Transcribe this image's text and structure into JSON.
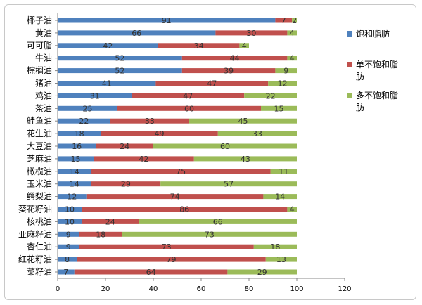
{
  "chart_data": {
    "type": "bar",
    "orientation": "horizontal",
    "stacked": true,
    "categories": [
      "椰子油",
      "黄油",
      "可可脂",
      "牛油",
      "棕榈油",
      "猪油",
      "鸡油",
      "茶油",
      "鲑鱼油",
      "花生油",
      "大豆油",
      "芝麻油",
      "橄榄油",
      "玉米油",
      "鳄梨油",
      "葵花籽油",
      "核桃油",
      "亚麻籽油",
      "杏仁油",
      "红花籽油",
      "菜籽油"
    ],
    "series": [
      {
        "name": "饱和脂肪",
        "color": "#4f81bd",
        "values": [
          91,
          66,
          42,
          52,
          52,
          41,
          31,
          25,
          22,
          18,
          16,
          15,
          14,
          14,
          12,
          10,
          10,
          9,
          9,
          8,
          7
        ]
      },
      {
        "name": "单不饱和脂肪",
        "color": "#c0504d",
        "values": [
          7,
          30,
          34,
          44,
          39,
          47,
          47,
          60,
          33,
          49,
          24,
          42,
          75,
          29,
          74,
          86,
          24,
          18,
          73,
          79,
          64
        ]
      },
      {
        "name": "多不饱和脂肪",
        "color": "#9bbb59",
        "values": [
          2,
          4,
          4,
          4,
          9,
          12,
          22,
          15,
          45,
          33,
          60,
          43,
          11,
          57,
          14,
          4,
          66,
          73,
          18,
          13,
          29
        ]
      }
    ],
    "xlim": [
      0,
      120
    ],
    "xticks": [
      0,
      20,
      40,
      60,
      80,
      100,
      120
    ],
    "grid": false,
    "legend_position": "right"
  }
}
